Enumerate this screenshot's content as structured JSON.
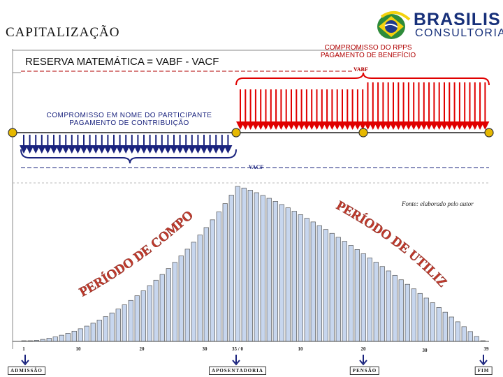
{
  "header": {
    "title": "CAPITALIZAÇÃO",
    "subtitle": "RESERVA MATEMÁTICA = VABF - VACF"
  },
  "logo": {
    "line1": "BRASILIS",
    "line2": "CONSULTORIA",
    "icon": "brazil-flag-globe-icon"
  },
  "labels": {
    "rpps_commitment": "COMPROMISSO DO RPPS PAGAMENTO DE BENEFÍCIO",
    "participant_commitment": "COMPROMISSO EM NOME DO PARTICIPANTE PAGAMENTO DE CONTRIBUIÇÃO",
    "vabf": "VABF",
    "vacf": "VACF",
    "source": "Fonte: elaborado pelo autor",
    "contribution_period": "PERÍODO DE COMPOSIÇÃO",
    "utilization_period": "PERÍODO DE UTILIZAÇÃO"
  },
  "timeline": {
    "ticks": [
      "1",
      "10",
      "20",
      "30",
      "35 / 0",
      "10",
      "20",
      "30",
      "39"
    ],
    "milestones": [
      "ADMISSÃO",
      "APOSENTADORIA",
      "PENSÃO",
      "FIM"
    ]
  },
  "colors": {
    "benefit": "#e00000",
    "contribution": "#1a237e",
    "reserve_bar": "#c7d6ee",
    "marker": "#e6b800"
  },
  "chart_data": {
    "type": "bar",
    "description_counts": {
      "accumulation_periods": 35,
      "payout_periods": 39
    },
    "peak_period": "35 / 0"
  }
}
